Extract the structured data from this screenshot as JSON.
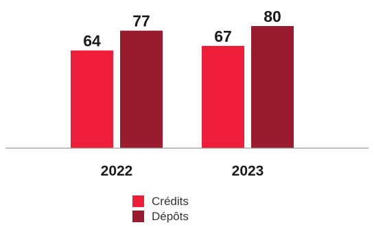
{
  "chart_data": {
    "type": "bar",
    "categories": [
      "2022",
      "2023"
    ],
    "series": [
      {
        "name": "Crédits",
        "color": "#ee1d3a",
        "values": [
          64,
          67
        ]
      },
      {
        "name": "Dépôts",
        "color": "#9a1b2e",
        "values": [
          77,
          80
        ]
      }
    ],
    "ylim": [
      0,
      80
    ],
    "grid": false,
    "legend_position": "bottom-center",
    "axis_color": "#999999"
  }
}
